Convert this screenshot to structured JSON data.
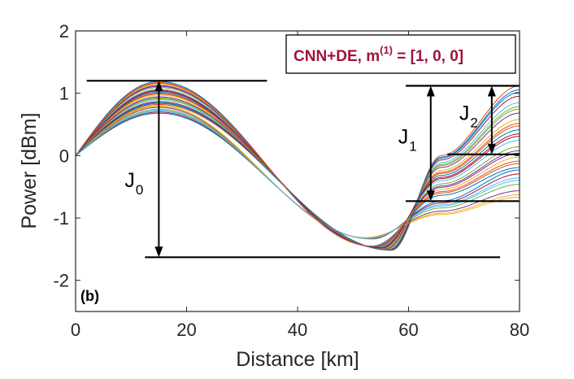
{
  "chart_data": {
    "type": "line",
    "title": "",
    "xlabel": "Distance [km]",
    "ylabel": "Power [dBm]",
    "xlim": [
      0,
      80
    ],
    "ylim": [
      -2.5,
      2
    ],
    "xticks": [
      0,
      20,
      40,
      60,
      80
    ],
    "yticks": [
      -2,
      -1,
      0,
      1,
      2
    ],
    "xtick_labels": [
      "0",
      "20",
      "40",
      "60",
      "80"
    ],
    "ytick_labels": [
      "-2",
      "-1",
      "0",
      "1",
      "2"
    ],
    "grid": false,
    "panel_label": "(b)",
    "legend": {
      "text": "CNN+DE, m",
      "superscript": "(1)",
      "suffix": " = [1, 0, 0]",
      "placement": "top-right",
      "color": "#a0133a"
    },
    "curve_family": {
      "count": 30,
      "x_start": 0,
      "x_end": 80,
      "start_value": 0,
      "peak_x": 15,
      "peak_range": [
        0.68,
        1.2
      ],
      "trough_x_range": [
        52,
        57
      ],
      "trough_range": [
        -1.6,
        -1.28
      ],
      "end_range": [
        -0.73,
        1.12
      ],
      "colors": [
        "#0072bd",
        "#d95319",
        "#edb120",
        "#7e2f8e",
        "#77ac30",
        "#4dbeee",
        "#a2142f"
      ]
    },
    "annotations": [
      {
        "label": "J",
        "sub": "0",
        "type": "double-arrow",
        "x": 15,
        "y_from": 1.2,
        "y_to": -1.63,
        "ref_lines": [
          {
            "x": [
              2,
              34.5
            ],
            "y": 1.2
          },
          {
            "x": [
              12.5,
              76.5
            ],
            "y": -1.63
          }
        ]
      },
      {
        "label": "J",
        "sub": "1",
        "type": "double-arrow",
        "x": 64,
        "y_from": 1.12,
        "y_to": -0.73,
        "ref_lines": [
          {
            "x": [
              59.5,
              80
            ],
            "y": 1.12
          },
          {
            "x": [
              59.5,
              80
            ],
            "y": -0.73
          }
        ]
      },
      {
        "label": "J",
        "sub": "2",
        "type": "double-arrow",
        "x": 75,
        "y_from": 1.12,
        "y_to": 0.02,
        "ref_lines": [
          {
            "x": [
              67,
              80
            ],
            "y": 0.02
          }
        ]
      }
    ],
    "line_color": "#000000"
  }
}
